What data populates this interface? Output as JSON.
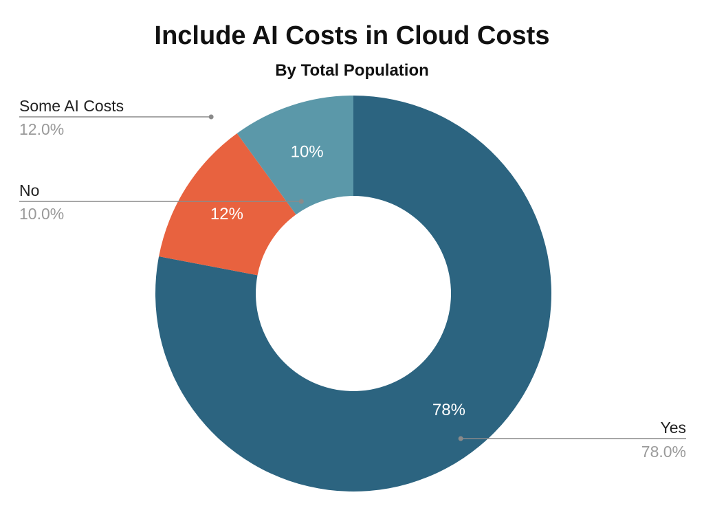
{
  "chart_data": {
    "type": "pie",
    "donut": true,
    "title": "Include AI Costs in Cloud Costs",
    "subtitle": "By Total Population",
    "slices": [
      {
        "name": "Yes",
        "value": 78.0,
        "label": "78%",
        "callout_pct": "78.0%",
        "color": "#2c6480"
      },
      {
        "name": "Some AI Costs",
        "value": 12.0,
        "label": "12%",
        "callout_pct": "12.0%",
        "color": "#e8623f"
      },
      {
        "name": "No",
        "value": 10.0,
        "label": "10%",
        "callout_pct": "10.0%",
        "color": "#5b98a9"
      }
    ],
    "legend": "callouts"
  }
}
